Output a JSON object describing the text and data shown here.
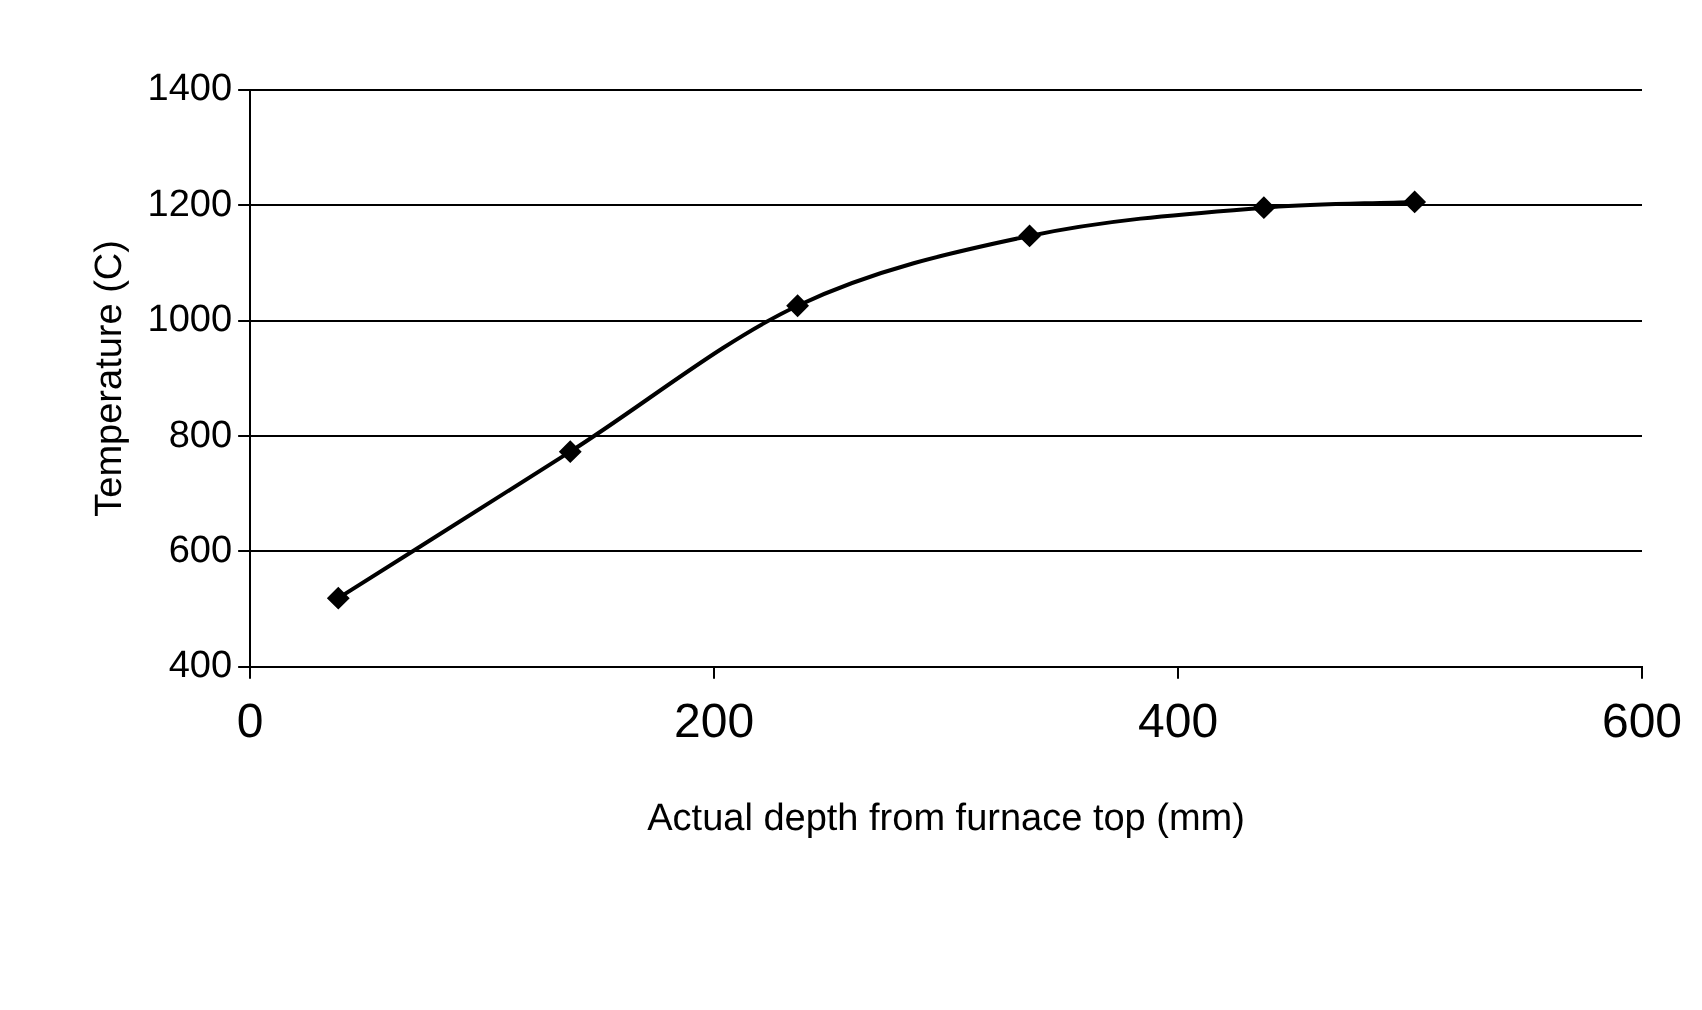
{
  "chart_data": {
    "type": "line",
    "xlabel": "Actual depth from furnace top (mm)",
    "ylabel": "Temperature (C)",
    "x": [
      38,
      138,
      236,
      336,
      437,
      502
    ],
    "series": [
      {
        "color": "#000000",
        "values": [
          519,
          773,
          1026,
          1147,
          1196,
          1206
        ]
      }
    ],
    "xlim": [
      0,
      600
    ],
    "xticks": [
      0,
      200,
      400,
      600
    ],
    "ylim": [
      400,
      1400
    ],
    "yticks": [
      400,
      600,
      800,
      1000,
      1200,
      1400
    ],
    "grid": "y",
    "legend": false,
    "marker": "diamond",
    "line_style": "solid"
  }
}
